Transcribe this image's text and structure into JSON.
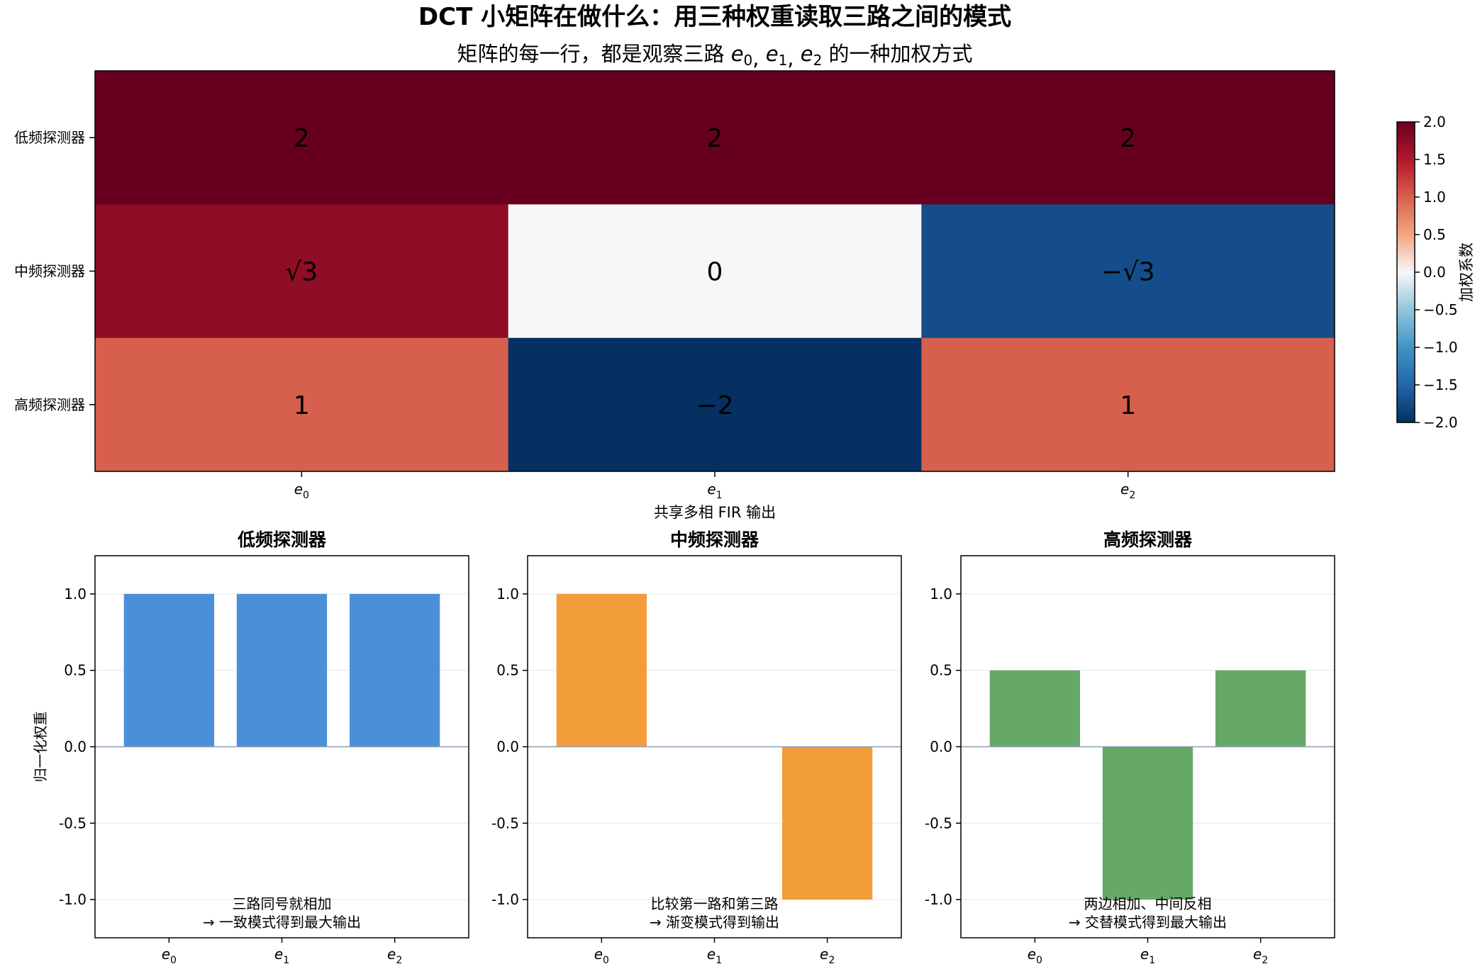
{
  "title": "DCT 小矩阵在做什么：用三种权重读取三路之间的模式",
  "subtitle_prefix": "矩阵的每一行，都是观察三路",
  "subtitle_suffix": "的一种加权方式",
  "channel_letter": "e",
  "colors": {
    "low": "#4a90d9",
    "mid": "#f39c3a",
    "high": "#66a866",
    "low_title": "#1f77d0",
    "mid_title": "#f07d10",
    "high_title": "#2e9a2e"
  },
  "chart_data": [
    {
      "type": "heatmap",
      "rows": [
        "低频探测器",
        "中频探测器",
        "高频探测器"
      ],
      "columns": [
        "e0",
        "e1",
        "e2"
      ],
      "values": [
        [
          2,
          2,
          2
        ],
        [
          1.732,
          0,
          -1.732
        ],
        [
          1,
          -2,
          1
        ]
      ],
      "cell_labels": [
        [
          "2",
          "2",
          "2"
        ],
        [
          "√3",
          "0",
          "−√3"
        ],
        [
          "1",
          "−2",
          "1"
        ]
      ],
      "xlabel": "共享多相 FIR 输出",
      "colorbar": {
        "label": "加权系数",
        "range": [
          -2.0,
          2.0
        ],
        "ticks": [
          "2.0",
          "1.5",
          "1.0",
          "0.5",
          "0.0",
          "−0.5",
          "−1.0",
          "−1.5",
          "−2.0"
        ],
        "colormap": "RdBu_r"
      }
    },
    {
      "type": "bar",
      "title": "低频探测器",
      "categories": [
        "e0",
        "e1",
        "e2"
      ],
      "values": [
        1.0,
        1.0,
        1.0
      ],
      "ylabel": "归一化权重",
      "ylim": [
        -1.25,
        1.25
      ],
      "yticks": [
        "1.0",
        "0.5",
        "0.0",
        "-0.5",
        "-1.0"
      ],
      "annotation": [
        "三路同号就相加",
        "→ 一致模式得到最大输出"
      ]
    },
    {
      "type": "bar",
      "title": "中频探测器",
      "categories": [
        "e0",
        "e1",
        "e2"
      ],
      "values": [
        1.0,
        0.0,
        -1.0
      ],
      "ylim": [
        -1.25,
        1.25
      ],
      "yticks": [
        "1.0",
        "0.5",
        "0.0",
        "-0.5",
        "-1.0"
      ],
      "annotation": [
        "比较第一路和第三路",
        "→ 渐变模式得到输出"
      ]
    },
    {
      "type": "bar",
      "title": "高频探测器",
      "categories": [
        "e0",
        "e1",
        "e2"
      ],
      "values": [
        0.5,
        -1.0,
        0.5
      ],
      "ylim": [
        -1.25,
        1.25
      ],
      "yticks": [
        "1.0",
        "0.5",
        "0.0",
        "-0.5",
        "-1.0"
      ],
      "annotation": [
        "两边相加、中间反相",
        "→ 交替模式得到最大输出"
      ]
    }
  ]
}
